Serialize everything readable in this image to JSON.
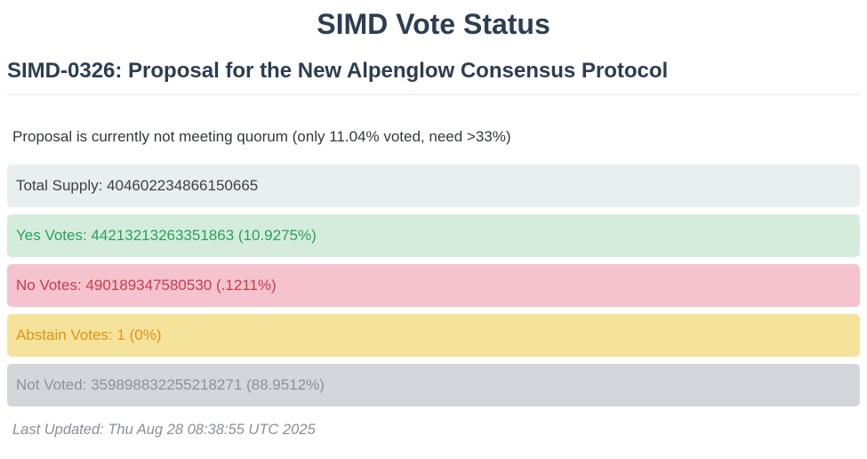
{
  "header": {
    "title": "SIMD Vote Status"
  },
  "proposal": {
    "heading": "SIMD-0326: Proposal for the New Alpenglow Consensus Protocol",
    "quorum_status": "Proposal is currently not meeting quorum (only 11.04% voted, need >33%)",
    "quorum_voted_percent": "11.04%",
    "quorum_needed_percent": ">33%"
  },
  "bars": [
    {
      "id": "total-supply",
      "label": "Total Supply",
      "value": "404602234866150665",
      "percent": "",
      "text": "Total Supply: 404602234866150665",
      "bg_color": "#e9eef1",
      "text_color": "#3b4248"
    },
    {
      "id": "yes-votes",
      "label": "Yes Votes",
      "value": "44213213263351863",
      "percent": "10.9275%",
      "text": "Yes Votes: 44213213263351863 (10.9275%)",
      "bg_color": "#d5ecdd",
      "text_color": "#2aa157"
    },
    {
      "id": "no-votes",
      "label": "No Votes",
      "value": "490189347580530",
      "percent": ".1211%",
      "text": "No Votes: 490189347580530 (.1211%)",
      "bg_color": "#f4c3cd",
      "text_color": "#c63c4c"
    },
    {
      "id": "abstain-votes",
      "label": "Abstain Votes",
      "value": "1",
      "percent": "0%",
      "text": "Abstain Votes: 1 (0%)",
      "bg_color": "#f6e39b",
      "text_color": "#dd9418"
    },
    {
      "id": "not-voted",
      "label": "Not Voted",
      "value": "359898832255218271",
      "percent": "88.9512%",
      "text": "Not Voted: 359898832255218271 (88.9512%)",
      "bg_color": "#d3d6da",
      "text_color": "#8d9399"
    }
  ],
  "footer": {
    "last_updated": "Last Updated: Thu Aug 28 08:38:55 UTC 2025"
  }
}
